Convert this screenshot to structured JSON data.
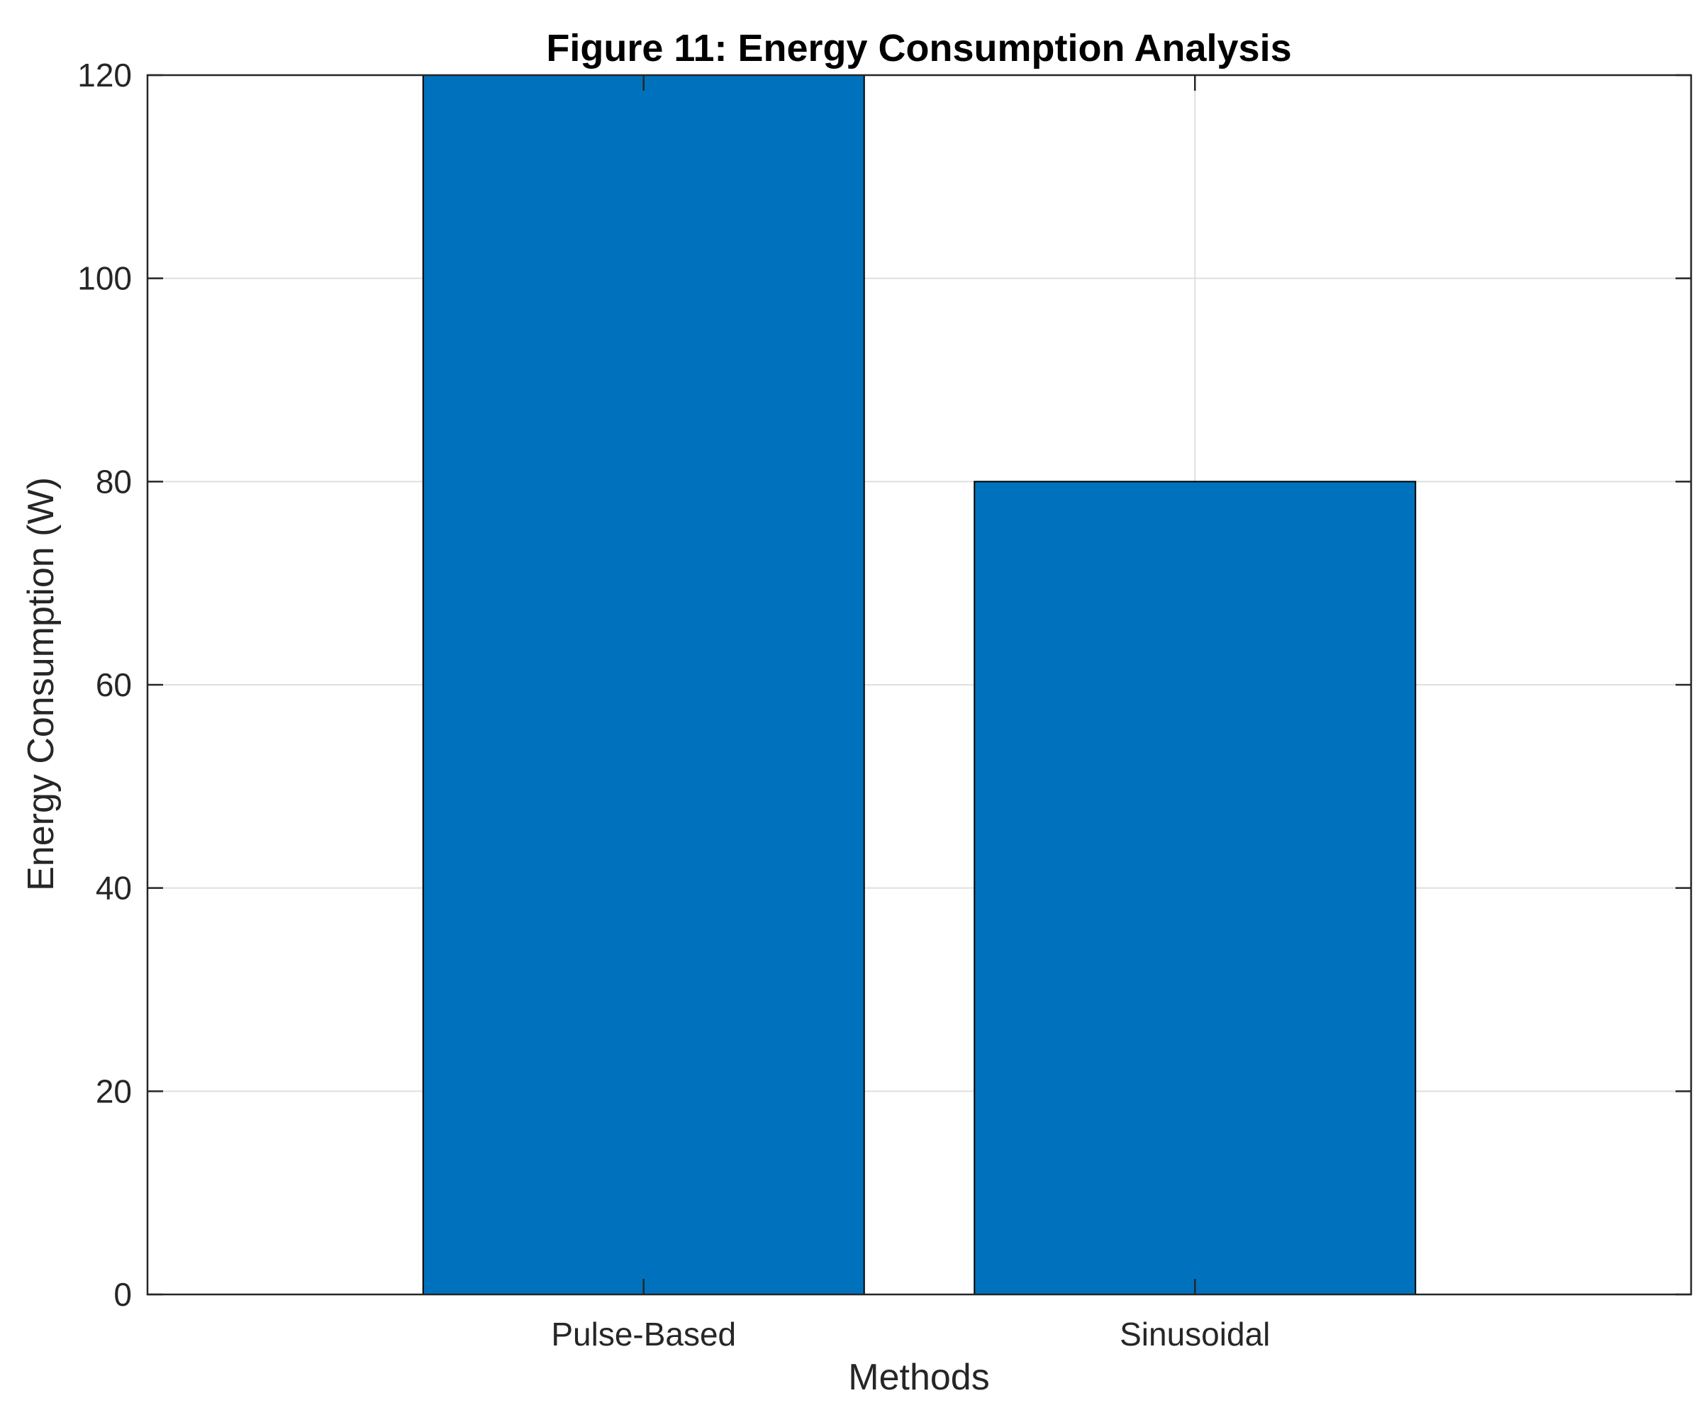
{
  "chart_data": {
    "type": "bar",
    "title": "Figure 11: Energy Consumption Analysis",
    "xlabel": "Methods",
    "ylabel": "Energy Consumption (W)",
    "categories": [
      "Pulse-Based",
      "Sinusoidal"
    ],
    "values": [
      120,
      80
    ],
    "ylim": [
      0,
      120
    ],
    "yticks": [
      0,
      20,
      40,
      60,
      80,
      100,
      120
    ],
    "xlim": [
      0.1,
      2.9
    ],
    "grid": true,
    "legend": "none",
    "colors": {
      "bar": "#0072BD",
      "bar_edge": "#000000",
      "grid": "#dfdfdf",
      "axis": "#262626"
    }
  }
}
